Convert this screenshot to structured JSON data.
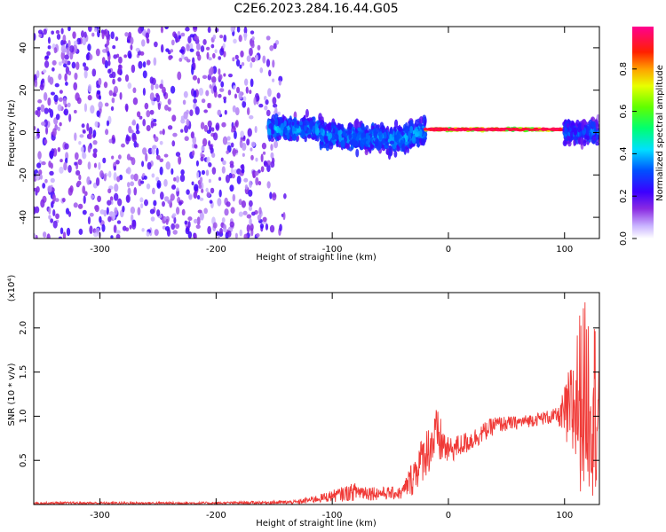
{
  "title": "C2E6.2023.284.16.44.G05",
  "chart_data": [
    {
      "type": "heatmap",
      "xlabel": "Height of straight line (km)",
      "ylabel": "Frequency (Hz)",
      "xlim": [
        -357,
        130
      ],
      "ylim": [
        -50,
        50
      ],
      "xticks": [
        -300,
        -200,
        -100,
        0,
        100
      ],
      "yticks": [
        -40,
        -20,
        0,
        20,
        40
      ],
      "colorbar": {
        "label": "Normalized spectral amplitude",
        "range": [
          0,
          1
        ],
        "ticks": [
          0.0,
          0.2,
          0.4,
          0.6,
          0.8
        ]
      },
      "regions": [
        {
          "x": [
            -357,
            -140
          ],
          "freq_spread": 50,
          "amplitude": 0.15
        },
        {
          "x": [
            -155,
            -110
          ],
          "freq_center": 2,
          "freq_spread": 8,
          "amplitude": 0.35
        },
        {
          "x": [
            -110,
            -20
          ],
          "freq_center": -3,
          "freq_spread": 10,
          "amplitude": 0.35
        },
        {
          "x": [
            -20,
            100
          ],
          "freq_center": 1.5,
          "freq_spread": 1.2,
          "amplitude": 0.95
        },
        {
          "x": [
            100,
            130
          ],
          "freq_center": 0,
          "freq_spread": 8,
          "amplitude": 0.3
        }
      ]
    },
    {
      "type": "line",
      "xlabel": "Height of straight line (km)",
      "ylabel": "SNR (10 * v/v)",
      "y_multiplier": "(x10⁴)",
      "xlim": [
        -357,
        130
      ],
      "ylim": [
        0,
        2.4
      ],
      "xticks": [
        -300,
        -200,
        -100,
        0,
        100
      ],
      "yticks": [
        0.5,
        1.0,
        1.5,
        2.0
      ],
      "color": "#f03a37",
      "series_envelope": [
        {
          "x": -357,
          "low": 0.0,
          "high": 0.03
        },
        {
          "x": -200,
          "low": 0.0,
          "high": 0.03
        },
        {
          "x": -130,
          "low": 0.0,
          "high": 0.05
        },
        {
          "x": -110,
          "low": 0.02,
          "high": 0.12
        },
        {
          "x": -80,
          "low": 0.04,
          "high": 0.25
        },
        {
          "x": -60,
          "low": 0.05,
          "high": 0.2
        },
        {
          "x": -40,
          "low": 0.05,
          "high": 0.2
        },
        {
          "x": -30,
          "low": 0.1,
          "high": 0.55
        },
        {
          "x": -20,
          "low": 0.3,
          "high": 0.85
        },
        {
          "x": -10,
          "low": 0.4,
          "high": 1.1
        },
        {
          "x": 0,
          "low": 0.45,
          "high": 0.75
        },
        {
          "x": 20,
          "low": 0.6,
          "high": 0.85
        },
        {
          "x": 40,
          "low": 0.8,
          "high": 1.0
        },
        {
          "x": 60,
          "low": 0.85,
          "high": 1.0
        },
        {
          "x": 80,
          "low": 0.9,
          "high": 1.05
        },
        {
          "x": 95,
          "low": 0.9,
          "high": 1.1
        },
        {
          "x": 105,
          "low": 0.4,
          "high": 1.6
        },
        {
          "x": 115,
          "low": 0.1,
          "high": 2.35
        },
        {
          "x": 130,
          "low": 0.1,
          "high": 2.1
        }
      ]
    }
  ]
}
